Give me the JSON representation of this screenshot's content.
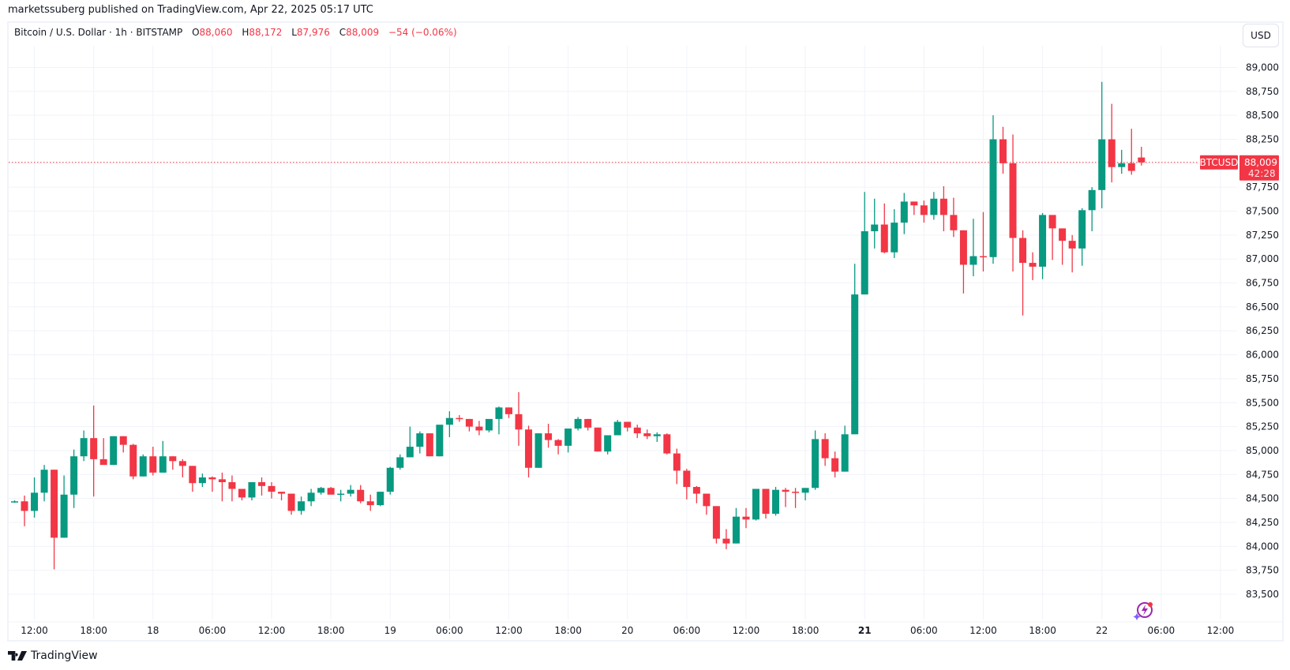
{
  "header": {
    "published": "marketssuberg published on TradingView.com, Apr 22, 2025 05:17 UTC"
  },
  "legend": {
    "symbol": "Bitcoin / U.S. Dollar · 1h · BITSTAMP",
    "open_label": "O",
    "open": "88,060",
    "high_label": "H",
    "high": "88,172",
    "low_label": "L",
    "low": "87,976",
    "close_label": "C",
    "close": "88,009",
    "change": "−54 (−0.06%)"
  },
  "currency_button": "USD",
  "price_tag": {
    "symbol": "BTCUSD",
    "price": "88,009",
    "countdown": "42:28"
  },
  "footer": {
    "brand": "TradingView"
  },
  "colors": {
    "up": "#089981",
    "down": "#f23645",
    "grid": "#f0f3fa",
    "text": "#131722",
    "assistant_icon": "#9c27b0"
  },
  "chart_data": {
    "type": "candlestick",
    "title": "Bitcoin / U.S. Dollar · 1h · BITSTAMP",
    "xlabel": "",
    "ylabel": "USD",
    "ylim": [
      83350,
      89200
    ],
    "yticks": [
      83500,
      83750,
      84000,
      84250,
      84500,
      84750,
      85000,
      85250,
      85500,
      85750,
      86000,
      86250,
      86500,
      86750,
      87000,
      87250,
      87500,
      87750,
      88000,
      88250,
      88500,
      88750,
      89000
    ],
    "ytick_labels": [
      "83,500",
      "83,750",
      "84,000",
      "84,250",
      "84,500",
      "84,750",
      "85,000",
      "85,250",
      "85,500",
      "85,750",
      "86,000",
      "86,250",
      "86,500",
      "86,750",
      "87,000",
      "87,250",
      "87,500",
      "87,750",
      "",
      "88,250",
      "88,500",
      "88,750",
      "89,000"
    ],
    "xticks": [
      {
        "label": "12:00",
        "hour": 2
      },
      {
        "label": "18:00",
        "hour": 8
      },
      {
        "label": "18",
        "hour": 14
      },
      {
        "label": "06:00",
        "hour": 20
      },
      {
        "label": "12:00",
        "hour": 26
      },
      {
        "label": "18:00",
        "hour": 32
      },
      {
        "label": "19",
        "hour": 38
      },
      {
        "label": "06:00",
        "hour": 44
      },
      {
        "label": "12:00",
        "hour": 50
      },
      {
        "label": "18:00",
        "hour": 56
      },
      {
        "label": "20",
        "hour": 62
      },
      {
        "label": "06:00",
        "hour": 68
      },
      {
        "label": "12:00",
        "hour": 74
      },
      {
        "label": "18:00",
        "hour": 80
      },
      {
        "label": "21",
        "hour": 86,
        "bold": true
      },
      {
        "label": "06:00",
        "hour": 92
      },
      {
        "label": "12:00",
        "hour": 98
      },
      {
        "label": "18:00",
        "hour": 104
      },
      {
        "label": "22",
        "hour": 110
      },
      {
        "label": "06:00",
        "hour": 116
      },
      {
        "label": "12:00",
        "hour": 122
      }
    ],
    "last_price": 88009,
    "candles_ohlc": [
      [
        84465,
        84480,
        84455,
        84470
      ],
      [
        84470,
        84530,
        84210,
        84370
      ],
      [
        84370,
        84720,
        84300,
        84560
      ],
      [
        84560,
        84850,
        84470,
        84800
      ],
      [
        84800,
        84800,
        83760,
        84090
      ],
      [
        84090,
        84740,
        84090,
        84540
      ],
      [
        84540,
        85010,
        84400,
        84940
      ],
      [
        84940,
        85210,
        84890,
        85130
      ],
      [
        85130,
        85470,
        84520,
        84910
      ],
      [
        84910,
        85130,
        84910,
        84850
      ],
      [
        84850,
        85150,
        84850,
        85150
      ],
      [
        85150,
        85150,
        84980,
        85060
      ],
      [
        85060,
        85070,
        84700,
        84730
      ],
      [
        84730,
        84960,
        84730,
        84940
      ],
      [
        84940,
        85040,
        84740,
        84770
      ],
      [
        84770,
        85100,
        84770,
        84940
      ],
      [
        84940,
        84940,
        84800,
        84890
      ],
      [
        84890,
        84910,
        84720,
        84840
      ],
      [
        84840,
        84840,
        84570,
        84660
      ],
      [
        84660,
        84760,
        84620,
        84720
      ],
      [
        84720,
        84730,
        84570,
        84700
      ],
      [
        84700,
        84770,
        84470,
        84670
      ],
      [
        84670,
        84740,
        84470,
        84600
      ],
      [
        84600,
        84600,
        84480,
        84510
      ],
      [
        84510,
        84670,
        84480,
        84670
      ],
      [
        84670,
        84720,
        84530,
        84630
      ],
      [
        84630,
        84670,
        84500,
        84570
      ],
      [
        84570,
        84570,
        84480,
        84550
      ],
      [
        84550,
        84550,
        84330,
        84370
      ],
      [
        84370,
        84520,
        84330,
        84470
      ],
      [
        84470,
        84600,
        84420,
        84560
      ],
      [
        84560,
        84620,
        84540,
        84610
      ],
      [
        84610,
        84620,
        84540,
        84540
      ],
      [
        84540,
        84590,
        84470,
        84550
      ],
      [
        84550,
        84640,
        84520,
        84590
      ],
      [
        84590,
        84640,
        84450,
        84470
      ],
      [
        84470,
        84540,
        84370,
        84430
      ],
      [
        84430,
        84570,
        84420,
        84570
      ],
      [
        84570,
        84830,
        84540,
        84820
      ],
      [
        84820,
        84960,
        84800,
        84930
      ],
      [
        84930,
        85250,
        84930,
        85040
      ],
      [
        85040,
        85200,
        84970,
        85180
      ],
      [
        85180,
        85180,
        84940,
        84940
      ],
      [
        84940,
        85260,
        84940,
        85270
      ],
      [
        85270,
        85410,
        85140,
        85340
      ],
      [
        85340,
        85370,
        85300,
        85330
      ],
      [
        85330,
        85330,
        85200,
        85250
      ],
      [
        85250,
        85310,
        85160,
        85210
      ],
      [
        85210,
        85320,
        85190,
        85330
      ],
      [
        85330,
        85460,
        85170,
        85450
      ],
      [
        85450,
        85450,
        85340,
        85380
      ],
      [
        85380,
        85610,
        85050,
        85220
      ],
      [
        85220,
        85260,
        84720,
        84820
      ],
      [
        84820,
        85180,
        84820,
        85180
      ],
      [
        85180,
        85280,
        85030,
        85110
      ],
      [
        85110,
        85120,
        84960,
        85050
      ],
      [
        85050,
        85170,
        84980,
        85230
      ],
      [
        85230,
        85350,
        85210,
        85330
      ],
      [
        85330,
        85330,
        85210,
        85240
      ],
      [
        85240,
        85240,
        84990,
        84990
      ],
      [
        84990,
        85090,
        84960,
        85160
      ],
      [
        85160,
        85320,
        85160,
        85300
      ],
      [
        85300,
        85300,
        85200,
        85240
      ],
      [
        85240,
        85270,
        85130,
        85180
      ],
      [
        85180,
        85220,
        85120,
        85150
      ],
      [
        85150,
        85190,
        85090,
        85170
      ],
      [
        85170,
        85180,
        84960,
        84970
      ],
      [
        84970,
        85020,
        84650,
        84790
      ],
      [
        84790,
        84810,
        84490,
        84620
      ],
      [
        84620,
        84630,
        84450,
        84550
      ],
      [
        84550,
        84550,
        84330,
        84420
      ],
      [
        84420,
        84420,
        84030,
        84080
      ],
      [
        84080,
        84180,
        83970,
        84030
      ],
      [
        84030,
        84400,
        84030,
        84310
      ],
      [
        84310,
        84400,
        84190,
        84280
      ],
      [
        84280,
        84600,
        84270,
        84600
      ],
      [
        84600,
        84600,
        84290,
        84340
      ],
      [
        84340,
        84620,
        84320,
        84590
      ],
      [
        84590,
        84610,
        84410,
        84570
      ],
      [
        84570,
        84610,
        84400,
        84560
      ],
      [
        84560,
        84600,
        84480,
        84610
      ],
      [
        84610,
        85210,
        84590,
        85120
      ],
      [
        85120,
        85180,
        84840,
        84920
      ],
      [
        84920,
        84990,
        84720,
        84780
      ],
      [
        84780,
        85260,
        84780,
        85170
      ],
      [
        85170,
        86950,
        85170,
        86630
      ],
      [
        86630,
        87700,
        86630,
        87290
      ],
      [
        87290,
        87630,
        87110,
        87360
      ],
      [
        87360,
        87580,
        87060,
        87070
      ],
      [
        87070,
        87520,
        87010,
        87380
      ],
      [
        87380,
        87690,
        87260,
        87600
      ],
      [
        87600,
        87580,
        87460,
        87560
      ],
      [
        87560,
        87610,
        87380,
        87460
      ],
      [
        87460,
        87700,
        87410,
        87630
      ],
      [
        87630,
        87760,
        87290,
        87460
      ],
      [
        87460,
        87640,
        87230,
        87300
      ],
      [
        87300,
        87300,
        86640,
        86940
      ],
      [
        86940,
        87420,
        86820,
        87030
      ],
      [
        87030,
        87490,
        86870,
        87020
      ],
      [
        87020,
        88500,
        86950,
        88250
      ],
      [
        88250,
        88380,
        87890,
        88000
      ],
      [
        88000,
        88300,
        86870,
        87220
      ],
      [
        87220,
        87300,
        86410,
        86960
      ],
      [
        86960,
        87070,
        86780,
        86920
      ],
      [
        86920,
        87480,
        86790,
        87460
      ],
      [
        87460,
        87440,
        86990,
        87320
      ],
      [
        87320,
        87300,
        86940,
        87190
      ],
      [
        87190,
        87250,
        86860,
        87110
      ],
      [
        87110,
        87530,
        86930,
        87510
      ],
      [
        87510,
        87750,
        87290,
        87720
      ],
      [
        87720,
        88850,
        87530,
        88250
      ],
      [
        88250,
        88620,
        87800,
        87960
      ],
      [
        87960,
        88140,
        87890,
        88000
      ],
      [
        88000,
        88360,
        87880,
        87920
      ],
      [
        88060,
        88172,
        87976,
        88009
      ]
    ]
  }
}
